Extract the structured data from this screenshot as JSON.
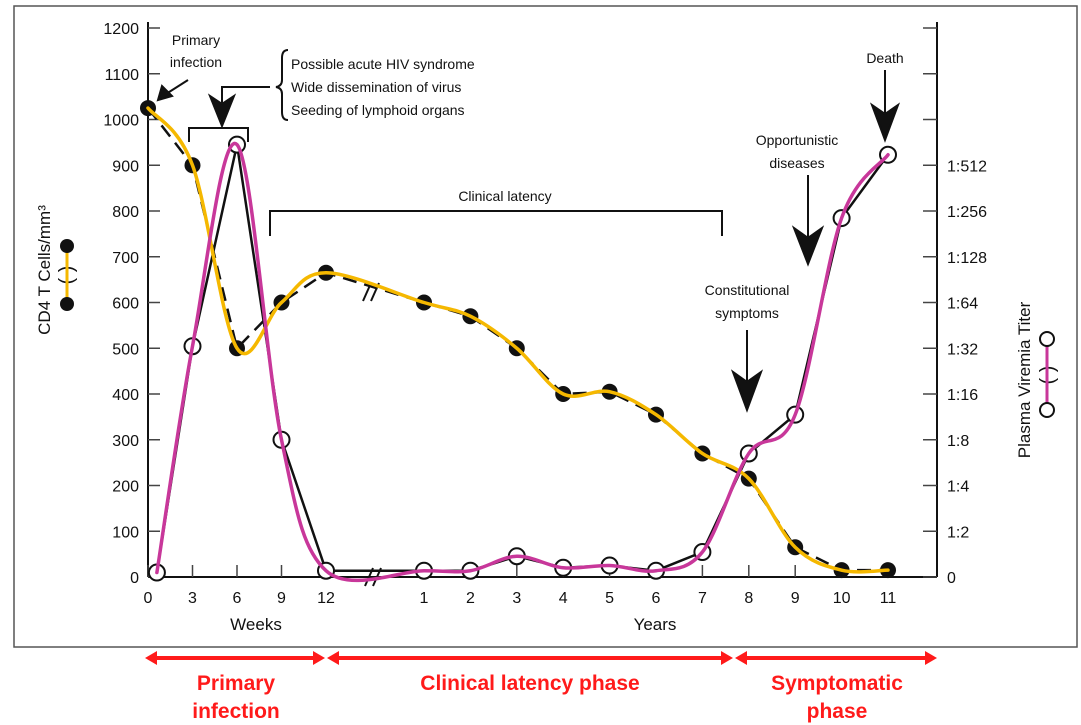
{
  "chart_data": {
    "type": "line",
    "ylabel_left": "CD4 T Cells/mm³",
    "ylabel_right": "Plasma Viremia Titer",
    "xlabel_weeks": "Weeks",
    "xlabel_years": "Years",
    "ylim_left": [
      0,
      1200
    ],
    "yticks_left": [
      "0",
      "100",
      "200",
      "300",
      "400",
      "500",
      "600",
      "700",
      "800",
      "900",
      "1000",
      "1100",
      "1200"
    ],
    "yticks_right": [
      "0",
      "1:2",
      "1:4",
      "1:8",
      "1:16",
      "1:32",
      "1:64",
      "1:128",
      "1:256",
      "1:512"
    ],
    "right_axis_scale": "log2",
    "xticks_weeks": [
      "0",
      "3",
      "6",
      "9",
      "12"
    ],
    "xticks_years": [
      "1",
      "2",
      "3",
      "4",
      "5",
      "6",
      "7",
      "8",
      "9",
      "10",
      "11"
    ],
    "axis_break": "between week 12 and year 1",
    "series": [
      {
        "key": "cd4",
        "axis": "left",
        "marker": "filled-circle",
        "line": "dashed",
        "smooth_color": "#f5b800",
        "points": [
          {
            "unit": "weeks",
            "t": 0,
            "y": 1025
          },
          {
            "unit": "weeks",
            "t": 3,
            "y": 900
          },
          {
            "unit": "weeks",
            "t": 6,
            "y": 500
          },
          {
            "unit": "weeks",
            "t": 9,
            "y": 600
          },
          {
            "unit": "weeks",
            "t": 12,
            "y": 665
          },
          {
            "unit": "years",
            "t": 1,
            "y": 600
          },
          {
            "unit": "years",
            "t": 2,
            "y": 570
          },
          {
            "unit": "years",
            "t": 3,
            "y": 500
          },
          {
            "unit": "years",
            "t": 4,
            "y": 400
          },
          {
            "unit": "years",
            "t": 5,
            "y": 405
          },
          {
            "unit": "years",
            "t": 6,
            "y": 355
          },
          {
            "unit": "years",
            "t": 7,
            "y": 270
          },
          {
            "unit": "years",
            "t": 8,
            "y": 215
          },
          {
            "unit": "years",
            "t": 9,
            "y": 65
          },
          {
            "unit": "years",
            "t": 10,
            "y": 15
          },
          {
            "unit": "years",
            "t": 11,
            "y": 15
          }
        ]
      },
      {
        "key": "viremia",
        "axis": "right",
        "marker": "open-circle",
        "line": "solid",
        "smooth_color": "#c8379a",
        "points": [
          {
            "unit": "weeks",
            "t": 0.6,
            "titer_reciprocal": 1.07
          },
          {
            "unit": "weeks",
            "t": 3,
            "titer_reciprocal": 33
          },
          {
            "unit": "weeks",
            "t": 6,
            "titer_reciprocal": 700
          },
          {
            "unit": "weeks",
            "t": 9,
            "titer_reciprocal": 8
          },
          {
            "unit": "weeks",
            "t": 12,
            "titer_reciprocal": 1.1
          },
          {
            "unit": "years",
            "t": 1,
            "titer_reciprocal": 1.1
          },
          {
            "unit": "years",
            "t": 2,
            "titer_reciprocal": 1.1
          },
          {
            "unit": "years",
            "t": 3,
            "titer_reciprocal": 1.37
          },
          {
            "unit": "years",
            "t": 4,
            "titer_reciprocal": 1.15
          },
          {
            "unit": "years",
            "t": 5,
            "titer_reciprocal": 1.19
          },
          {
            "unit": "years",
            "t": 6,
            "titer_reciprocal": 1.1
          },
          {
            "unit": "years",
            "t": 7,
            "titer_reciprocal": 1.46
          },
          {
            "unit": "years",
            "t": 8,
            "titer_reciprocal": 6.5
          },
          {
            "unit": "years",
            "t": 9,
            "titer_reciprocal": 11.7
          },
          {
            "unit": "years",
            "t": 10,
            "titer_reciprocal": 230
          },
          {
            "unit": "years",
            "t": 11,
            "titer_reciprocal": 600
          }
        ]
      }
    ],
    "annotations": {
      "primary_infection": [
        "Primary",
        "infection"
      ],
      "acute": [
        "Possible acute HIV syndrome",
        "Wide dissemination of virus",
        "Seeding of lymphoid organs"
      ],
      "clinical_latency": "Clinical latency",
      "constitutional": [
        "Constitutional",
        "symptoms"
      ],
      "opportunistic": [
        "Opportunistic",
        "diseases"
      ],
      "death": "Death"
    }
  },
  "phases": {
    "color": "#ff1a1a",
    "primary": [
      "Primary",
      "infection"
    ],
    "latency": "Clinical latency phase",
    "symptomatic": [
      "Symptomatic",
      "phase"
    ]
  }
}
